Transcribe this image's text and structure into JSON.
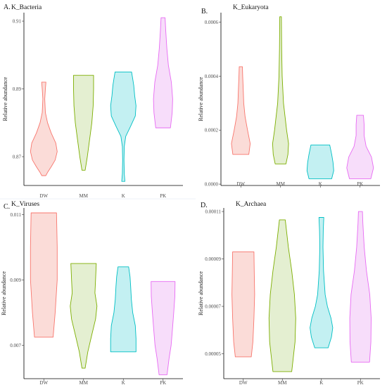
{
  "chart_data": [
    {
      "type": "violin",
      "panel": "A.",
      "title": "K_Bacteria",
      "xlabel": "",
      "ylabel": "Relative abundance",
      "ylim": [
        0.8615,
        0.9125
      ],
      "yticks": [
        "0.87",
        "0.89",
        "0.91"
      ],
      "categories": [
        "DW",
        "MM",
        "K",
        "PK"
      ],
      "show_xticks": false,
      "series": [
        {
          "category": "DW",
          "min": 0.8644,
          "max": 0.892,
          "profile": [
            [
              0.8644,
              0.15
            ],
            [
              0.8655,
              0.3
            ],
            [
              0.867,
              0.55
            ],
            [
              0.869,
              0.85
            ],
            [
              0.8715,
              1.0
            ],
            [
              0.874,
              0.9
            ],
            [
              0.877,
              0.55
            ],
            [
              0.88,
              0.28
            ],
            [
              0.883,
              0.12
            ],
            [
              0.887,
              0.07
            ],
            [
              0.89,
              0.12
            ],
            [
              0.892,
              0.16
            ]
          ]
        },
        {
          "category": "MM",
          "min": 0.866,
          "max": 0.894,
          "profile": [
            [
              0.866,
              0.12
            ],
            [
              0.87,
              0.28
            ],
            [
              0.875,
              0.45
            ],
            [
              0.88,
              0.62
            ],
            [
              0.885,
              0.72
            ],
            [
              0.89,
              0.75
            ],
            [
              0.894,
              0.75
            ]
          ]
        },
        {
          "category": "K",
          "min": 0.8627,
          "max": 0.895,
          "profile": [
            [
              0.8627,
              0.12
            ],
            [
              0.865,
              0.07
            ],
            [
              0.869,
              0.05
            ],
            [
              0.873,
              0.07
            ],
            [
              0.876,
              0.18
            ],
            [
              0.879,
              0.55
            ],
            [
              0.882,
              0.9
            ],
            [
              0.885,
              0.95
            ],
            [
              0.888,
              0.85
            ],
            [
              0.891,
              0.78
            ],
            [
              0.893,
              0.7
            ],
            [
              0.895,
              0.62
            ]
          ]
        },
        {
          "category": "PK",
          "min": 0.8785,
          "max": 0.911,
          "profile": [
            [
              0.8785,
              0.55
            ],
            [
              0.883,
              0.68
            ],
            [
              0.887,
              0.72
            ],
            [
              0.892,
              0.62
            ],
            [
              0.897,
              0.4
            ],
            [
              0.902,
              0.28
            ],
            [
              0.907,
              0.2
            ],
            [
              0.911,
              0.15
            ]
          ]
        }
      ]
    },
    {
      "type": "violin",
      "panel": "B.",
      "title": "K_Eukaryota",
      "xlabel": "",
      "ylabel": "Relative abundance",
      "ylim": [
        -5e-06,
        0.000635
      ],
      "yticks": [
        "0.0000",
        "0.0002",
        "0.0004",
        "0.0006"
      ],
      "categories": [
        "DW",
        "MM",
        "K",
        "PK"
      ],
      "show_xticks": true,
      "series": [
        {
          "category": "DW",
          "min": 0.00011,
          "max": 0.000435,
          "profile": [
            [
              0.00011,
              0.6
            ],
            [
              0.00015,
              0.7
            ],
            [
              0.0002,
              0.5
            ],
            [
              0.00025,
              0.32
            ],
            [
              0.0003,
              0.22
            ],
            [
              0.00035,
              0.18
            ],
            [
              0.0004,
              0.14
            ],
            [
              0.000435,
              0.12
            ]
          ]
        },
        {
          "category": "MM",
          "min": 7.5e-05,
          "max": 0.00062,
          "profile": [
            [
              7.5e-05,
              0.4
            ],
            [
              0.00011,
              0.55
            ],
            [
              0.00015,
              0.6
            ],
            [
              0.0002,
              0.45
            ],
            [
              0.0003,
              0.22
            ],
            [
              0.0004,
              0.12
            ],
            [
              0.0005,
              0.08
            ],
            [
              0.00062,
              0.06
            ]
          ]
        },
        {
          "category": "K",
          "min": 2e-05,
          "max": 0.000145,
          "profile": [
            [
              2e-05,
              0.85
            ],
            [
              5e-05,
              1.0
            ],
            [
              8e-05,
              0.95
            ],
            [
              0.00011,
              0.85
            ],
            [
              0.000145,
              0.7
            ]
          ]
        },
        {
          "category": "PK",
          "min": 2e-05,
          "max": 0.000255,
          "profile": [
            [
              2e-05,
              0.8
            ],
            [
              6e-05,
              1.0
            ],
            [
              0.0001,
              0.85
            ],
            [
              0.00014,
              0.45
            ],
            [
              0.00018,
              0.3
            ],
            [
              0.00022,
              0.3
            ],
            [
              0.000255,
              0.25
            ]
          ]
        }
      ]
    },
    {
      "type": "violin",
      "panel": "C.",
      "title": "K_Viruses",
      "xlabel": "",
      "ylabel": "Relative abundance",
      "ylim": [
        0.00598,
        0.0112
      ],
      "yticks": [
        "0.007",
        "0.009",
        "0.011"
      ],
      "categories": [
        "DW",
        "MM",
        "K",
        "PK"
      ],
      "show_xticks": true,
      "series": [
        {
          "category": "DW",
          "min": 0.00725,
          "max": 0.01105,
          "profile": [
            [
              0.00725,
              0.7
            ],
            [
              0.008,
              0.85
            ],
            [
              0.009,
              1.0
            ],
            [
              0.01,
              1.0
            ],
            [
              0.01105,
              0.95
            ]
          ]
        },
        {
          "category": "MM",
          "min": 0.0063,
          "max": 0.0095,
          "profile": [
            [
              0.0063,
              0.12
            ],
            [
              0.0068,
              0.32
            ],
            [
              0.0073,
              0.6
            ],
            [
              0.0078,
              0.9
            ],
            [
              0.0082,
              1.0
            ],
            [
              0.0086,
              0.85
            ],
            [
              0.009,
              0.9
            ],
            [
              0.0095,
              0.95
            ]
          ]
        },
        {
          "category": "K",
          "min": 0.0068,
          "max": 0.0094,
          "profile": [
            [
              0.0068,
              0.95
            ],
            [
              0.0072,
              0.95
            ],
            [
              0.0076,
              0.9
            ],
            [
              0.008,
              0.7
            ],
            [
              0.0084,
              0.6
            ],
            [
              0.0088,
              0.55
            ],
            [
              0.0091,
              0.5
            ],
            [
              0.0094,
              0.4
            ]
          ]
        },
        {
          "category": "PK",
          "min": 0.0061,
          "max": 0.00895,
          "profile": [
            [
              0.0061,
              0.3
            ],
            [
              0.0066,
              0.45
            ],
            [
              0.007,
              0.6
            ],
            [
              0.0075,
              0.7
            ],
            [
              0.008,
              0.8
            ],
            [
              0.0085,
              0.88
            ],
            [
              0.00895,
              0.9
            ]
          ]
        }
      ]
    },
    {
      "type": "violin",
      "panel": "D.",
      "title": "K_Archaea",
      "xlabel": "",
      "ylabel": "Relative abundance",
      "ylim": [
        3.95e-05,
        0.0001115
      ],
      "yticks": [
        "0.00005",
        "0.00007",
        "0.00009",
        "0.00011"
      ],
      "categories": [
        "DW",
        "MM",
        "K",
        "PK"
      ],
      "show_xticks": true,
      "series": [
        {
          "category": "DW",
          "min": 4.87e-05,
          "max": 9.3e-05,
          "profile": [
            [
              4.87e-05,
              0.6
            ],
            [
              5.5e-05,
              0.72
            ],
            [
              6.5e-05,
              0.8
            ],
            [
              7.5e-05,
              0.85
            ],
            [
              8.5e-05,
              0.82
            ],
            [
              9.3e-05,
              0.8
            ]
          ]
        },
        {
          "category": "MM",
          "min": 4.25e-05,
          "max": 0.0001065,
          "profile": [
            [
              4.25e-05,
              0.7
            ],
            [
              5.5e-05,
              0.95
            ],
            [
              6.5e-05,
              1.0
            ],
            [
              7.5e-05,
              0.9
            ],
            [
              8.5e-05,
              0.7
            ],
            [
              9.5e-05,
              0.45
            ],
            [
              0.0001065,
              0.22
            ]
          ]
        },
        {
          "category": "K",
          "min": 5.25e-05,
          "max": 0.0001075,
          "profile": [
            [
              5.25e-05,
              0.5
            ],
            [
              5.7e-05,
              0.75
            ],
            [
              6.1e-05,
              0.85
            ],
            [
              6.5e-05,
              0.72
            ],
            [
              7e-05,
              0.45
            ],
            [
              7.5e-05,
              0.28
            ],
            [
              8.5e-05,
              0.16
            ],
            [
              9.5e-05,
              0.12
            ],
            [
              0.000102,
              0.14
            ],
            [
              0.0001075,
              0.18
            ]
          ]
        },
        {
          "category": "PK",
          "min": 4.65e-05,
          "max": 0.00011,
          "profile": [
            [
              4.65e-05,
              0.68
            ],
            [
              5.5e-05,
              0.78
            ],
            [
              6.5e-05,
              0.8
            ],
            [
              7.5e-05,
              0.7
            ],
            [
              8.5e-05,
              0.45
            ],
            [
              9.5e-05,
              0.28
            ],
            [
              0.000105,
              0.18
            ],
            [
              0.00011,
              0.15
            ]
          ]
        }
      ]
    }
  ],
  "colors": {
    "DW": {
      "stroke": "#F8766D",
      "fill": "#FBDCD8"
    },
    "MM": {
      "stroke": "#7CAE00",
      "fill": "#E4EFD1"
    },
    "K": {
      "stroke": "#00BFC4",
      "fill": "#C3F0F2"
    },
    "PK": {
      "stroke": "#E76BF3",
      "fill": "#F7DDFA"
    }
  }
}
